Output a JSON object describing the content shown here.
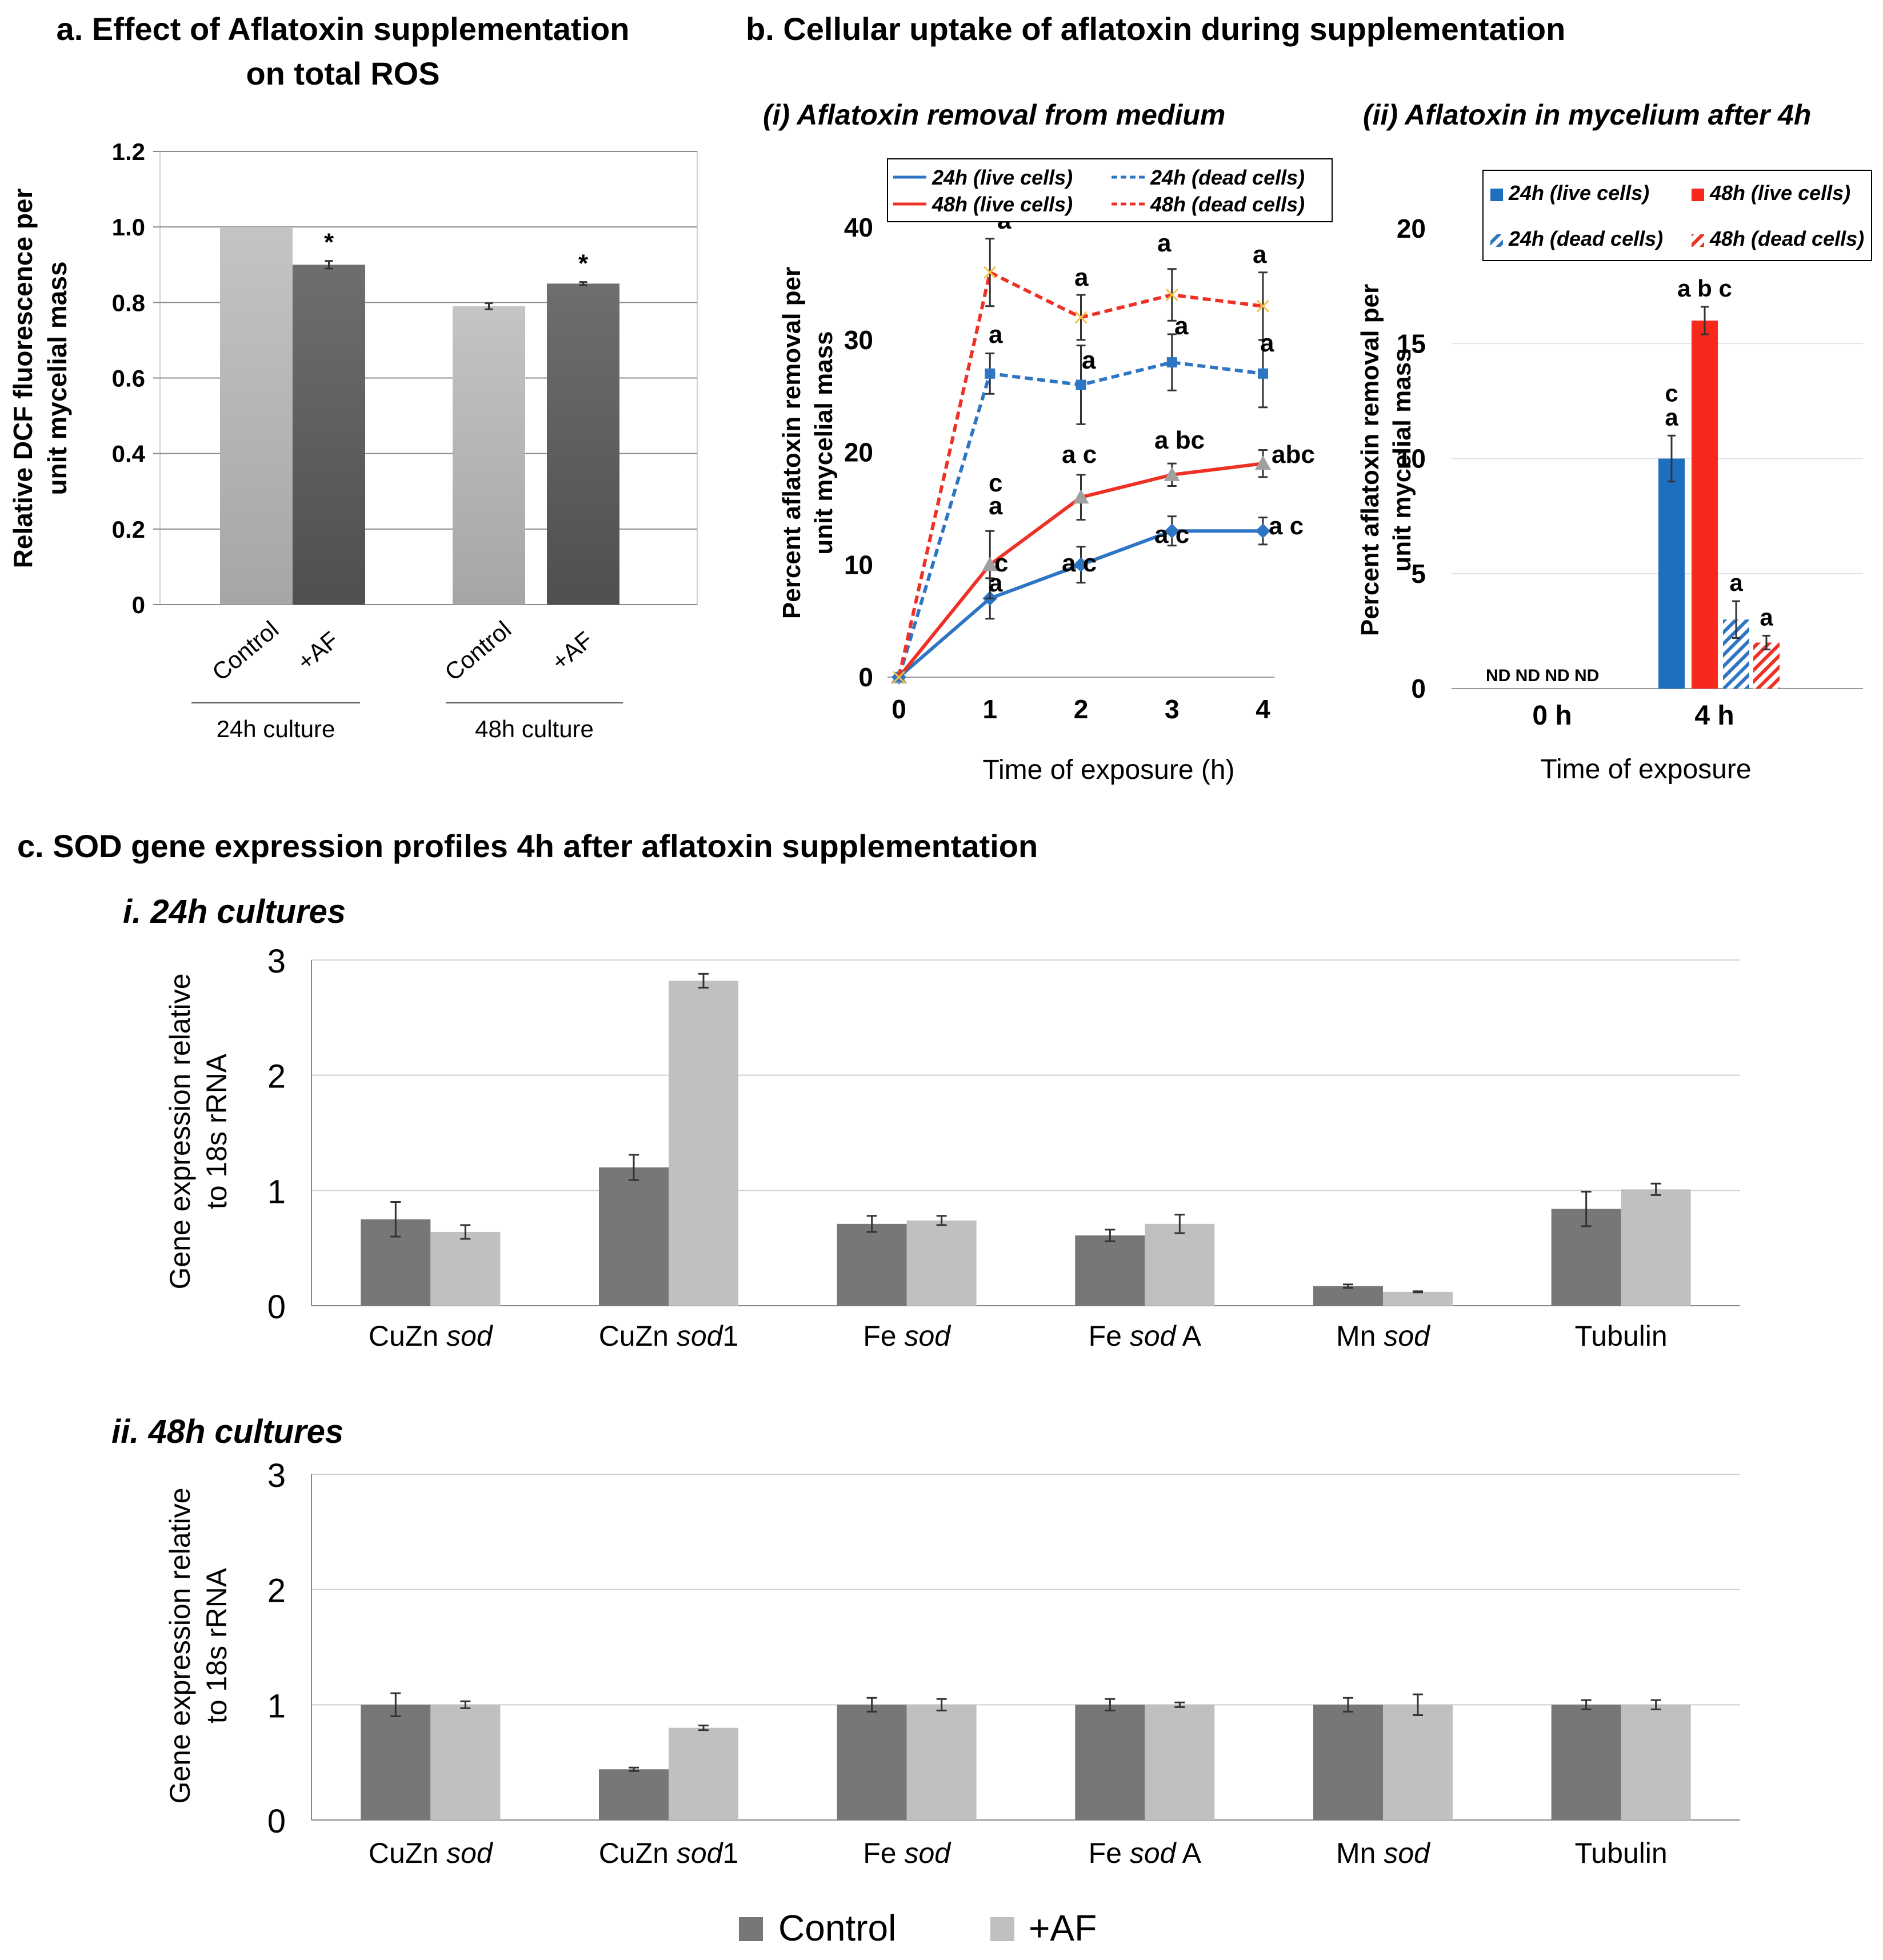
{
  "panel_a": {
    "title_line1": "a. Effect of Aflatoxin supplementation",
    "title_line2": "on total ROS",
    "chart_data": {
      "type": "bar",
      "ylabel_line1": "Relative DCF fluorescence per",
      "ylabel_line2": "unit mycelial mass",
      "ylim": [
        0,
        1.2
      ],
      "yticks": [
        "0",
        "0.2",
        "0.4",
        "0.6",
        "0.8",
        "1.0",
        "1.2"
      ],
      "groups": [
        {
          "label": "24h culture",
          "bars": [
            {
              "name": "Control",
              "value": 1.0,
              "error": 0.0,
              "mark": ""
            },
            {
              "name": "+AF",
              "value": 0.9,
              "error": 0.01,
              "mark": "*"
            }
          ]
        },
        {
          "label": "48h culture",
          "bars": [
            {
              "name": "Control",
              "value": 0.79,
              "error": 0.008,
              "mark": ""
            },
            {
              "name": "+AF",
              "value": 0.85,
              "error": 0.004,
              "mark": "*"
            }
          ]
        }
      ]
    }
  },
  "panel_b": {
    "title": "b. Cellular uptake of aflatoxin during supplementation",
    "sub_i": {
      "title": "(i) Aflatoxin removal from medium",
      "chart_data": {
        "type": "line",
        "ylabel_line1": "Percent aflatoxin removal per",
        "ylabel_line2": "unit mycelial mass",
        "xlabel": "Time of exposure (h)",
        "x": [
          0,
          1,
          2,
          3,
          4
        ],
        "xticks": [
          "0",
          "1",
          "2",
          "3",
          "4"
        ],
        "ylim": [
          0,
          40
        ],
        "yticks": [
          "0",
          "10",
          "20",
          "30",
          "40"
        ],
        "series": [
          {
            "name": "24h (live cells)",
            "color": "#2e75c4",
            "dash": "",
            "marker": "diamond",
            "values": [
              0,
              7,
              10,
              13,
              13
            ],
            "errors": [
              0,
              1.8,
              1.6,
              1.3,
              1.2
            ],
            "labels": [
              [],
              [
                "c",
                "a"
              ],
              [
                "a c"
              ],
              [
                "a c"
              ],
              [
                "a c"
              ]
            ]
          },
          {
            "name": "48h (live cells)",
            "color": "#ee3124",
            "dash": "",
            "marker": "triangle",
            "values": [
              0,
              10,
              16,
              18,
              19
            ],
            "errors": [
              0,
              3,
              2,
              1,
              1.2
            ],
            "labels": [
              [],
              [
                "c",
                "a"
              ],
              [
                "a c"
              ],
              [
                "a bc"
              ],
              [
                "abc"
              ]
            ]
          },
          {
            "name": "24h (dead cells)",
            "color": "#2e75c4",
            "dash": "14 8",
            "marker": "square",
            "values": [
              0,
              27,
              26,
              28,
              27
            ],
            "errors": [
              0,
              1.8,
              3.5,
              2.5,
              3
            ],
            "labels": [
              [],
              [
                "a"
              ],
              [
                "a"
              ],
              [
                "a"
              ],
              [
                "a"
              ]
            ]
          },
          {
            "name": "48h (dead cells)",
            "color": "#ee3124",
            "dash": "14 8",
            "marker": "x",
            "values": [
              0,
              36,
              32,
              34,
              33
            ],
            "errors": [
              0,
              3,
              2,
              2.3,
              3
            ],
            "labels": [
              [],
              [
                "a"
              ],
              [
                "a"
              ],
              [
                "a"
              ],
              [
                "a"
              ]
            ]
          }
        ]
      }
    },
    "sub_ii": {
      "title": "(ii) Aflatoxin in mycelium after 4h",
      "chart_data": {
        "type": "bar",
        "ylabel_line1": "Percent aflatoxin removal per",
        "ylabel_line2": "unit mycelial mass",
        "xlabel": "Time of exposure",
        "categories": [
          "0 h",
          "4 h"
        ],
        "ylim": [
          0,
          20
        ],
        "yticks": [
          "0",
          "5",
          "10",
          "15",
          "20"
        ],
        "nd_text": "ND ND ND ND",
        "series": [
          {
            "name": "24h (live cells)",
            "color": "#1e6fc0",
            "hatch": false,
            "values": [
              0,
              10
            ],
            "errors": [
              0,
              1
            ],
            "labels": [
              "",
              "a"
            ],
            "labels2": [
              "",
              "c"
            ]
          },
          {
            "name": "48h (live cells)",
            "color": "#f8281d",
            "hatch": false,
            "values": [
              0,
              16
            ],
            "errors": [
              0,
              0.6
            ],
            "labels": [
              "",
              "a b c"
            ],
            "labels2": [
              "",
              ""
            ]
          },
          {
            "name": "24h (dead cells)",
            "color": "#2e75c4",
            "hatch": true,
            "values": [
              0,
              3
            ],
            "errors": [
              0,
              0.8
            ],
            "labels": [
              "",
              "a"
            ],
            "labels2": [
              "",
              ""
            ]
          },
          {
            "name": "48h (dead cells)",
            "color": "#ee3124",
            "hatch": true,
            "values": [
              0,
              2
            ],
            "errors": [
              0,
              0.3
            ],
            "labels": [
              "",
              "a"
            ],
            "labels2": [
              "",
              ""
            ]
          }
        ]
      }
    }
  },
  "panel_c": {
    "title": "c. SOD gene expression profiles 4h after aflatoxin supplementation",
    "ylabel_line1": "Gene expression relative",
    "ylabel_line2": "to 18s rRNA",
    "categories": [
      {
        "pre": "CuZn ",
        "ital": "sod",
        "post": ""
      },
      {
        "pre": "CuZn ",
        "ital": "sod",
        "post": "1"
      },
      {
        "pre": "Fe ",
        "ital": "sod",
        "post": ""
      },
      {
        "pre": "Fe ",
        "ital": "sod",
        "post": " A"
      },
      {
        "pre": "Mn ",
        "ital": "sod",
        "post": ""
      },
      {
        "pre": "Tubulin",
        "ital": "",
        "post": ""
      }
    ],
    "legend": [
      "Control",
      "+AF"
    ],
    "colors": {
      "control": "#777777",
      "af": "#c0c0c0"
    },
    "yticks": [
      "0",
      "1",
      "2",
      "3"
    ],
    "chart_data": [
      {
        "type": "bar",
        "title": "i. 24h cultures",
        "ylim": [
          0,
          3
        ],
        "series": [
          {
            "name": "Control",
            "values": [
              0.75,
              1.2,
              0.71,
              0.61,
              0.17,
              0.84
            ],
            "errors": [
              0.15,
              0.11,
              0.07,
              0.05,
              0.015,
              0.15
            ]
          },
          {
            "name": "+AF",
            "values": [
              0.64,
              2.82,
              0.74,
              0.71,
              0.12,
              1.01
            ],
            "errors": [
              0.06,
              0.06,
              0.04,
              0.08,
              0.005,
              0.05
            ]
          }
        ]
      },
      {
        "type": "bar",
        "title": "ii. 48h cultures",
        "ylim": [
          0,
          3
        ],
        "series": [
          {
            "name": "Control",
            "values": [
              1.0,
              0.44,
              1.0,
              1.0,
              1.0,
              1.0
            ],
            "errors": [
              0.1,
              0.015,
              0.06,
              0.05,
              0.06,
              0.04
            ]
          },
          {
            "name": "+AF",
            "values": [
              1.0,
              0.8,
              1.0,
              1.0,
              1.0,
              1.0
            ],
            "errors": [
              0.03,
              0.02,
              0.05,
              0.02,
              0.09,
              0.04
            ]
          }
        ]
      }
    ]
  }
}
